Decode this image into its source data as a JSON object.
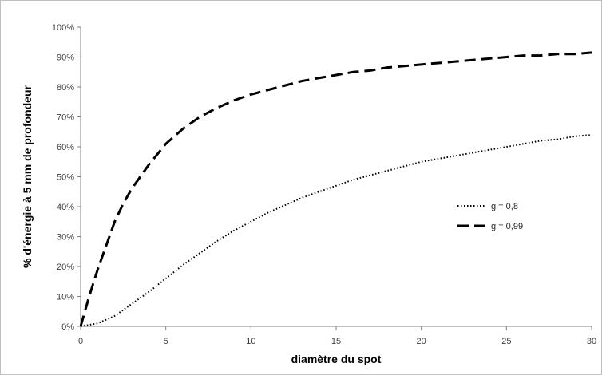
{
  "chart_data": {
    "type": "line",
    "title": "",
    "xlabel": "diamètre du spot",
    "ylabel": "% d'énergie à 5 mm de profondeur",
    "xlim": [
      0,
      30
    ],
    "ylim": [
      0,
      100
    ],
    "x_ticks": [
      0,
      5,
      10,
      15,
      20,
      25,
      30
    ],
    "y_ticks": [
      "0%",
      "10%",
      "20%",
      "30%",
      "40%",
      "50%",
      "60%",
      "70%",
      "80%",
      "90%",
      "100%"
    ],
    "grid": false,
    "legend_position": "right",
    "series": [
      {
        "name": "g = 0,8",
        "style": "dotted",
        "color": "#000000",
        "x": [
          0,
          1,
          2,
          3,
          4,
          5,
          6,
          7,
          8,
          9,
          10,
          11,
          12,
          13,
          14,
          15,
          16,
          17,
          18,
          19,
          20,
          21,
          22,
          23,
          24,
          25,
          26,
          27,
          28,
          29,
          30
        ],
        "y": [
          0,
          1,
          3.5,
          7.5,
          11.5,
          16,
          20.5,
          24.5,
          28.5,
          32,
          35,
          38,
          40.5,
          43,
          45,
          47,
          49,
          50.5,
          52,
          53.5,
          55,
          56,
          57,
          58,
          59,
          60,
          61,
          62,
          62.5,
          63.5,
          64
        ]
      },
      {
        "name": "g = 0,99",
        "style": "dashed",
        "color": "#000000",
        "x": [
          0,
          0.5,
          1,
          1.5,
          2,
          2.5,
          3,
          4,
          5,
          6,
          7,
          8,
          9,
          10,
          11,
          12,
          13,
          14,
          15,
          16,
          17,
          18,
          19,
          20,
          21,
          22,
          23,
          24,
          25,
          26,
          27,
          28,
          29,
          30
        ],
        "y": [
          0,
          10,
          19,
          27,
          35,
          41,
          46,
          54,
          61,
          66,
          70,
          73,
          75.5,
          77.5,
          79,
          80.5,
          82,
          83,
          84,
          85,
          85.5,
          86.5,
          87,
          87.5,
          88,
          88.5,
          89,
          89.5,
          90,
          90.5,
          90.5,
          91,
          91,
          91.5
        ]
      }
    ]
  }
}
